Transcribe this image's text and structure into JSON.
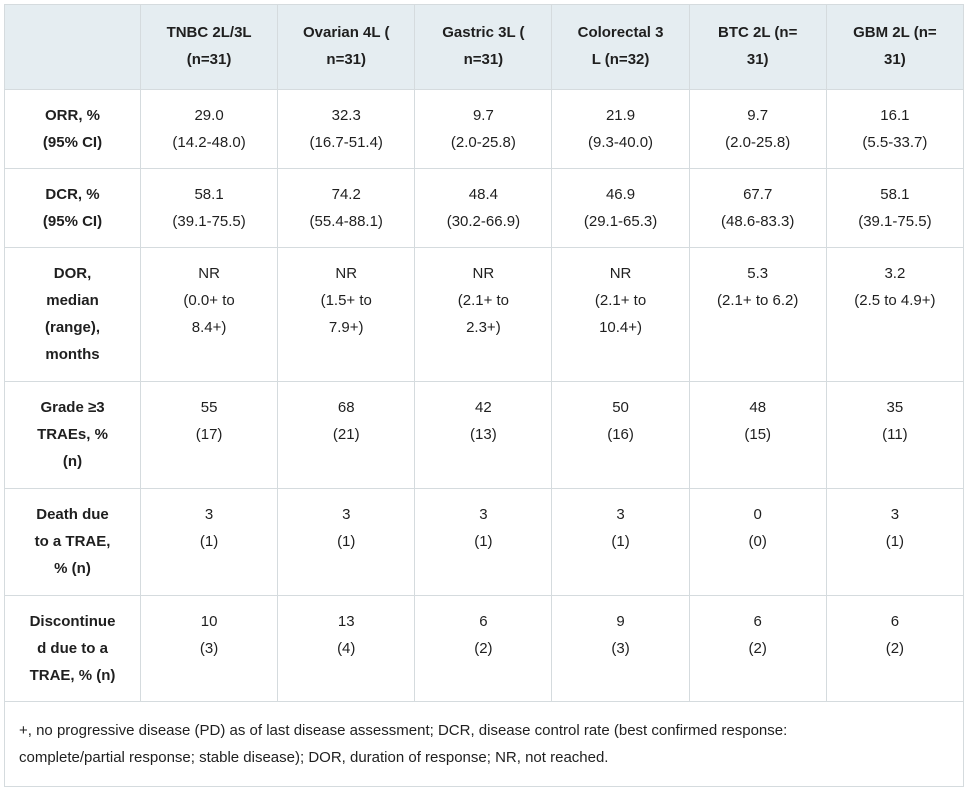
{
  "colors": {
    "header_bg": "#e5edf1",
    "border": "#d5dbde",
    "text": "#1f1f1f"
  },
  "display": {
    "columns": [
      "TNBC 2L/3L\n(n=31)",
      "Ovarian 4L (\nn=31)",
      "Gastric 3L (\nn=31)",
      "Colorectal 3\nL (n=32)",
      "BTC 2L (n=\n31)",
      "GBM 2L (n=\n31)"
    ],
    "rows": [
      {
        "label": "ORR, %\n(95% CI)",
        "values": [
          "29.0\n(14.2-48.0)",
          "32.3\n(16.7-51.4)",
          "9.7\n(2.0-25.8)",
          "21.9\n(9.3-40.0)",
          "9.7\n(2.0-25.8)",
          "16.1\n(5.5-33.7)"
        ]
      },
      {
        "label": "DCR, %\n(95% CI)",
        "values": [
          "58.1\n(39.1-75.5)",
          "74.2\n(55.4-88.1)",
          "48.4\n(30.2-66.9)",
          "46.9\n(29.1-65.3)",
          "67.7\n(48.6-83.3)",
          "58.1\n(39.1-75.5)"
        ]
      },
      {
        "label": "DOR,\nmedian\n(range),\nmonths",
        "values": [
          "NR\n(0.0+ to\n8.4+)",
          "NR\n(1.5+ to\n7.9+)",
          "NR\n(2.1+ to\n2.3+)",
          "NR\n(2.1+ to\n10.4+)",
          "5.3\n(2.1+ to 6.2)",
          "3.2\n(2.5 to 4.9+)"
        ]
      },
      {
        "label": "Grade ≥3\nTRAEs, %\n(n)",
        "values": [
          "55\n(17)",
          "68\n(21)",
          "42\n(13)",
          "50\n(16)",
          "48\n(15)",
          "35\n(11)"
        ]
      },
      {
        "label": "Death due\nto a TRAE,\n% (n)",
        "values": [
          "3\n(1)",
          "3\n(1)",
          "3\n(1)",
          "3\n(1)",
          "0\n(0)",
          "3\n(1)"
        ]
      },
      {
        "label": "Discontinue\nd due to a\nTRAE, % (n)",
        "values": [
          "10\n(3)",
          "13\n(4)",
          "6\n(2)",
          "9\n(3)",
          "6\n(2)",
          "6\n(2)"
        ]
      }
    ],
    "footnote": "+, no progressive disease (PD) as of last disease assessment; DCR, disease control rate (best confirmed response:\ncomplete/partial response; stable disease); DOR, duration of response; NR, not reached."
  },
  "chart_data": {
    "type": "table",
    "columns": [
      "TNBC 2L/3L (n=31)",
      "Ovarian 4L (n=31)",
      "Gastric 3L (n=31)",
      "Colorectal 3L (n=32)",
      "BTC 2L (n=31)",
      "GBM 2L (n=31)"
    ],
    "row_labels": [
      "ORR, % (95% CI)",
      "DCR, % (95% CI)",
      "DOR, median (range), months",
      "Grade ≥3 TRAEs, % (n)",
      "Death due to a TRAE, % (n)",
      "Discontinued due to a TRAE, % (n)"
    ],
    "rows": [
      [
        "29.0 (14.2-48.0)",
        "32.3 (16.7-51.4)",
        "9.7 (2.0-25.8)",
        "21.9 (9.3-40.0)",
        "9.7 (2.0-25.8)",
        "16.1 (5.5-33.7)"
      ],
      [
        "58.1 (39.1-75.5)",
        "74.2 (55.4-88.1)",
        "48.4 (30.2-66.9)",
        "46.9 (29.1-65.3)",
        "67.7 (48.6-83.3)",
        "58.1 (39.1-75.5)"
      ],
      [
        "NR (0.0+ to 8.4+)",
        "NR (1.5+ to 7.9+)",
        "NR (2.1+ to 2.3+)",
        "NR (2.1+ to 10.4+)",
        "5.3 (2.1+ to 6.2)",
        "3.2 (2.5 to 4.9+)"
      ],
      [
        "55 (17)",
        "68 (21)",
        "42 (13)",
        "50 (16)",
        "48 (15)",
        "35 (11)"
      ],
      [
        "3 (1)",
        "3 (1)",
        "3 (1)",
        "3 (1)",
        "0 (0)",
        "3 (1)"
      ],
      [
        "10 (3)",
        "13 (4)",
        "6 (2)",
        "9 (3)",
        "6 (2)",
        "6 (2)"
      ]
    ],
    "footnote": "+, no progressive disease (PD) as of last disease assessment; DCR, disease control rate (best confirmed response: complete/partial response; stable disease); DOR, duration of response; NR, not reached.",
    "layout": {
      "header_fill": "#e5edf1",
      "grid": true,
      "cell_align": "center",
      "footnote_align": "left"
    }
  }
}
